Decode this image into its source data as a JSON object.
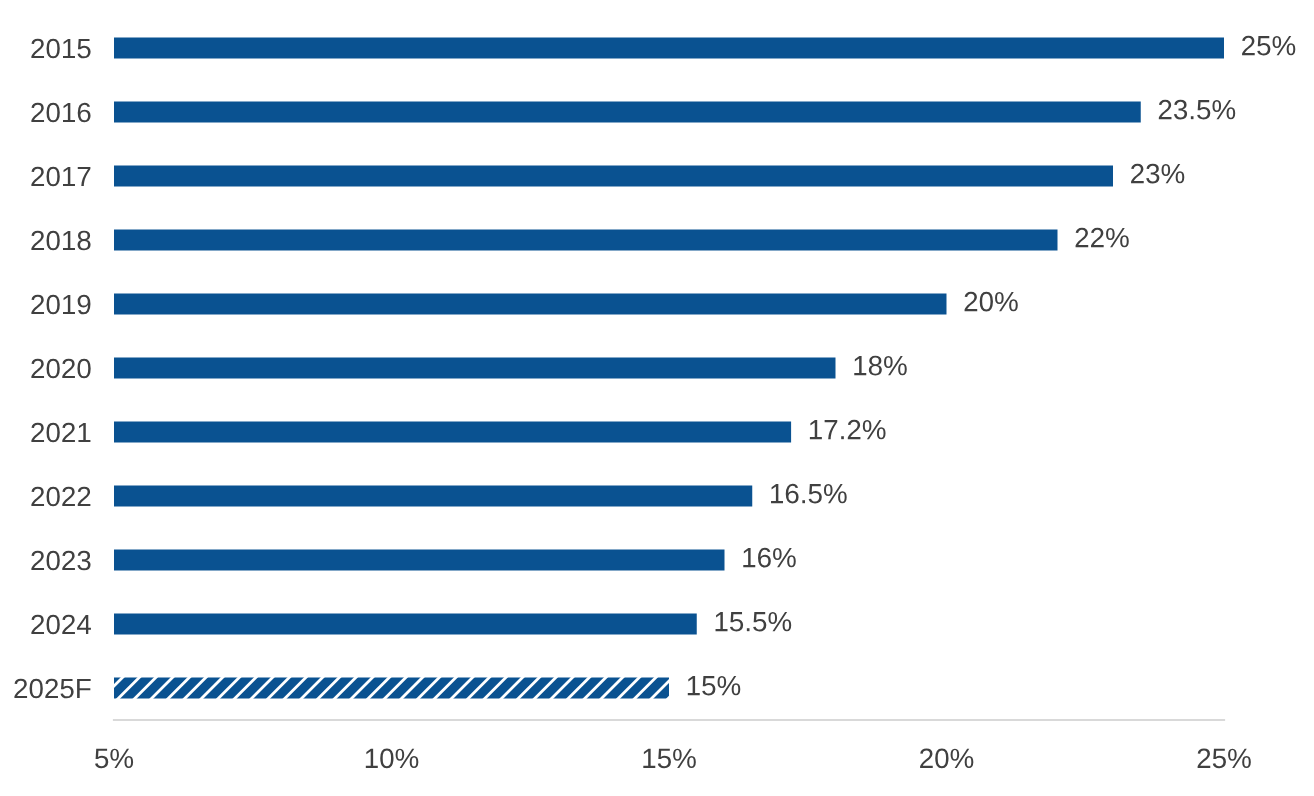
{
  "chart_data": {
    "type": "bar",
    "orientation": "horizontal",
    "categories": [
      "2015",
      "2016",
      "2017",
      "2018",
      "2019",
      "2020",
      "2021",
      "2022",
      "2023",
      "2024",
      "2025F"
    ],
    "series": [
      {
        "color": "#0a5291",
        "values": [
          25,
          23.5,
          23,
          22,
          20,
          18,
          17.2,
          16.5,
          16,
          15.5,
          null
        ],
        "value_labels": [
          "25%",
          "23.5%",
          "23%",
          "22%",
          "20%",
          "18%",
          "17.2%",
          "16.5%",
          "16%",
          "15.5%",
          null
        ]
      },
      {
        "color": "#0a5291",
        "values": [
          null,
          null,
          null,
          null,
          null,
          null,
          null,
          null,
          null,
          null,
          15
        ],
        "value_labels": [
          null,
          null,
          null,
          null,
          null,
          null,
          null,
          null,
          null,
          null,
          "15%"
        ]
      }
    ],
    "xlim": [
      5,
      25
    ],
    "xticks": [
      {
        "value": 5,
        "label": "5%"
      },
      {
        "value": 10,
        "label": "10%"
      },
      {
        "value": 15,
        "label": "15%"
      },
      {
        "value": 20,
        "label": "20%"
      },
      {
        "value": 25,
        "label": "25%"
      }
    ],
    "grid": false,
    "legend": false
  }
}
